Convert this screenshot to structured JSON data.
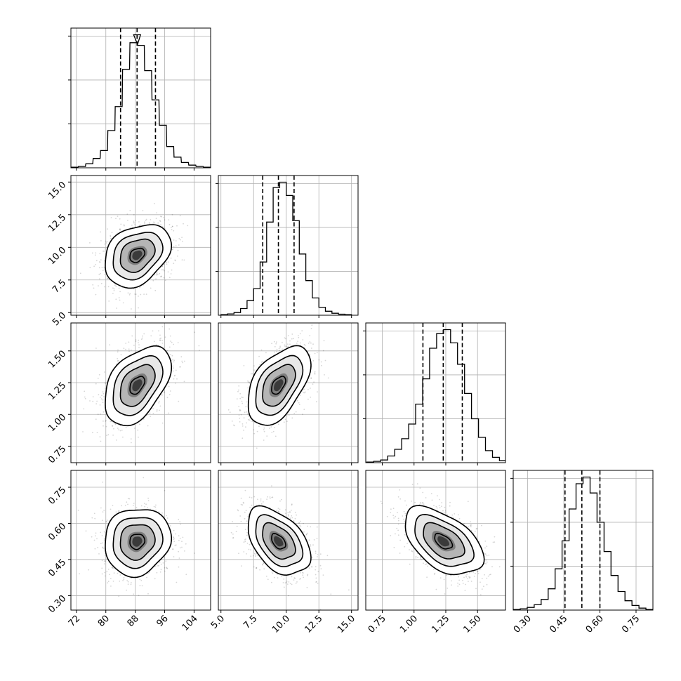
{
  "chart_data": {
    "type": "corner",
    "grid": true,
    "parameters": [
      {
        "name": "",
        "range": [
          70.5,
          108.5
        ],
        "ticks": [
          72,
          80,
          88,
          96,
          104
        ],
        "tick_labels": [
          "72",
          "80",
          "88",
          "96",
          "104"
        ],
        "median": 88.5,
        "q16": 84.0,
        "q84": 93.5,
        "std": 4.5
      },
      {
        "name": "",
        "range": [
          4.8,
          15.5
        ],
        "ticks": [
          5.0,
          7.5,
          10.0,
          12.5,
          15.0
        ],
        "tick_labels": [
          "5.0",
          "7.5",
          "10.0",
          "12.5",
          "15.0"
        ],
        "median": 9.4,
        "q16": 8.2,
        "q84": 10.6,
        "std": 1.2
      },
      {
        "name": "",
        "range": [
          0.62,
          1.72
        ],
        "ticks": [
          0.75,
          1.0,
          1.25,
          1.5
        ],
        "tick_labels": [
          "0.75",
          "1.00",
          "1.25",
          "1.50"
        ],
        "median": 1.23,
        "q16": 1.07,
        "q84": 1.38,
        "std": 0.155
      },
      {
        "name": "",
        "range": [
          0.24,
          0.82
        ],
        "ticks": [
          0.3,
          0.45,
          0.6,
          0.75
        ],
        "tick_labels": [
          "0.30",
          "0.45",
          "0.60",
          "0.75"
        ],
        "median": 0.525,
        "q16": 0.455,
        "q84": 0.6,
        "std": 0.07
      }
    ],
    "correlations": {
      "1-0": 0.3,
      "2-0": 0.45,
      "2-1": 0.5,
      "3-0": 0.1,
      "3-1": -0.45,
      "3-2": -0.5
    },
    "histograms": [
      {
        "bin_centers": [
          71.5,
          73.5,
          75.5,
          77.5,
          79.5,
          81.5,
          83.5,
          85.5,
          87.5,
          88.5,
          89.5,
          91.5,
          93.5,
          95.5,
          97.5,
          99.5,
          101.5,
          103.5,
          105.5,
          107.5
        ],
        "counts": [
          0.005,
          0.01,
          0.03,
          0.07,
          0.13,
          0.28,
          0.46,
          0.74,
          0.94,
          1.0,
          0.92,
          0.73,
          0.51,
          0.32,
          0.16,
          0.08,
          0.04,
          0.02,
          0.01,
          0.005
        ]
      },
      {
        "bin_centers": [
          5.25,
          5.75,
          6.25,
          6.75,
          7.25,
          7.75,
          8.25,
          8.75,
          9.25,
          9.75,
          10.25,
          10.75,
          11.25,
          11.75,
          12.25,
          12.75,
          13.25,
          13.75,
          14.25,
          14.75
        ],
        "counts": [
          0.005,
          0.01,
          0.02,
          0.05,
          0.11,
          0.2,
          0.4,
          0.7,
          0.96,
          1.0,
          0.9,
          0.71,
          0.46,
          0.26,
          0.13,
          0.06,
          0.03,
          0.015,
          0.008,
          0.004
        ]
      },
      {
        "bin_centers": [
          0.655,
          0.71,
          0.765,
          0.82,
          0.875,
          0.93,
          0.985,
          1.04,
          1.095,
          1.15,
          1.205,
          1.26,
          1.315,
          1.37,
          1.425,
          1.48,
          1.535,
          1.59,
          1.645,
          1.7
        ],
        "counts": [
          0.005,
          0.01,
          0.02,
          0.05,
          0.1,
          0.18,
          0.29,
          0.44,
          0.63,
          0.86,
          0.97,
          1.0,
          0.9,
          0.74,
          0.52,
          0.33,
          0.19,
          0.09,
          0.04,
          0.015
        ]
      },
      {
        "bin_centers": [
          0.2545,
          0.2835,
          0.3125,
          0.3415,
          0.3705,
          0.3995,
          0.4285,
          0.4575,
          0.4865,
          0.5155,
          0.5445,
          0.5735,
          0.6025,
          0.6315,
          0.6605,
          0.6895,
          0.7185,
          0.7475,
          0.7765,
          0.8055
        ],
        "counts": [
          0.005,
          0.01,
          0.02,
          0.04,
          0.08,
          0.16,
          0.31,
          0.52,
          0.76,
          0.95,
          1.0,
          0.88,
          0.66,
          0.44,
          0.26,
          0.14,
          0.07,
          0.035,
          0.015,
          0.005
        ]
      }
    ]
  }
}
